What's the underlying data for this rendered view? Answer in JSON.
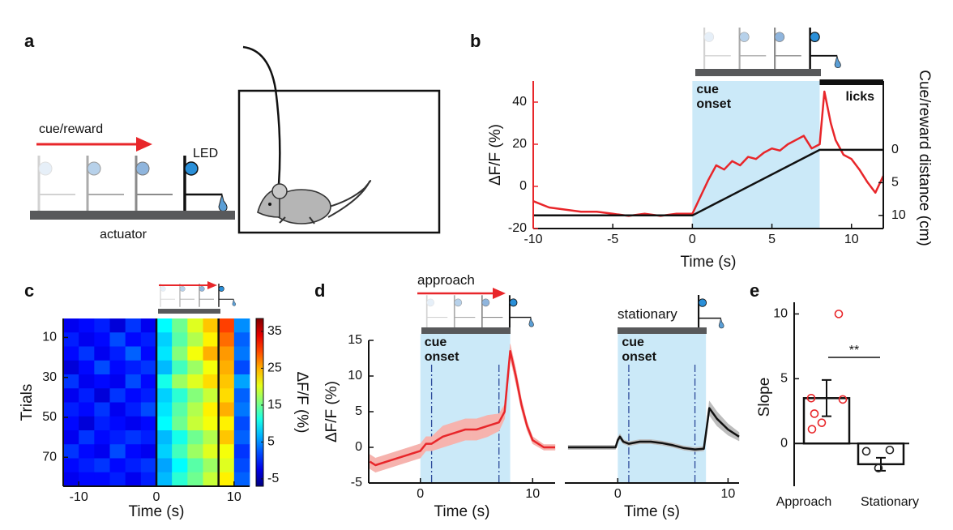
{
  "panel_labels": [
    "a",
    "b",
    "c",
    "d",
    "e"
  ],
  "diagram": {
    "cue_label": "cue/reward",
    "led_label": "LED",
    "actuator_label": "actuator"
  },
  "chart_data": [
    {
      "type": "line",
      "xlabel": "Time (s)",
      "ylabel": "ΔF/F (%)",
      "y2label": "Cue/reward distance (cm)",
      "xlim": [
        -10,
        12
      ],
      "xticks": [
        -10,
        -5,
        0,
        5,
        10
      ],
      "ylim": [
        -20,
        50
      ],
      "yticks": [
        -20,
        0,
        20,
        40
      ],
      "yaxis_color": "#e8262a",
      "y2lim": [
        12,
        -10.5
      ],
      "y2ticks": [
        0,
        5,
        10
      ],
      "span": [
        0,
        8
      ],
      "span_label": "cue onset",
      "annotation": "licks",
      "series": [
        {
          "color": "#e8262a",
          "x": [
            -10,
            -9,
            -8,
            -7,
            -6,
            -5,
            -4,
            -3,
            -2,
            -1,
            0,
            0.5,
            1,
            1.5,
            2,
            2.5,
            3,
            3.5,
            4,
            4.5,
            5,
            5.5,
            6,
            6.5,
            7,
            7.5,
            8,
            8.3,
            8.7,
            9,
            9.5,
            10,
            10.5,
            11,
            11.5,
            12
          ],
          "values": [
            -7,
            -10,
            -11,
            -12,
            -12,
            -13,
            -14,
            -13,
            -14,
            -13,
            -13,
            -5,
            3,
            10,
            8,
            12,
            10,
            14,
            13,
            16,
            18,
            17,
            20,
            22,
            24,
            18,
            20,
            45,
            30,
            22,
            15,
            13,
            8,
            2,
            -3,
            5
          ]
        },
        {
          "color": "#111111",
          "axis": "y2",
          "x": [
            -10,
            0,
            8,
            12
          ],
          "values": [
            10,
            10,
            0,
            0
          ]
        }
      ]
    },
    {
      "type": "heatmap",
      "xlabel": "Time (s)",
      "ylabel": "Trials",
      "clabel": "ΔF/F (%)",
      "colormap": "jet",
      "xlim": [
        -12,
        12
      ],
      "xticks": [
        -10,
        0,
        10
      ],
      "ylim": [
        84.5,
        0.5
      ],
      "yticks": [
        10,
        30,
        50,
        70
      ],
      "clim": [
        -7,
        38.5
      ],
      "cticks": [
        -5,
        5,
        15,
        25,
        35
      ],
      "vlines": [
        0,
        8
      ],
      "x": [
        -11,
        -9,
        -7,
        -5,
        -3,
        -1,
        1,
        3,
        5,
        7,
        9,
        11
      ],
      "y": [
        4,
        11,
        18,
        25,
        32,
        39,
        46,
        53,
        60,
        67,
        74,
        81
      ],
      "values": [
        [
          -2,
          -1,
          0,
          -3,
          1,
          -2,
          10,
          15,
          20,
          24,
          30,
          5
        ],
        [
          0,
          -2,
          -1,
          2,
          -1,
          0,
          8,
          14,
          18,
          22,
          28,
          3
        ],
        [
          -1,
          1,
          -2,
          0,
          3,
          -1,
          9,
          16,
          21,
          25,
          26,
          4
        ],
        [
          -3,
          -1,
          2,
          -1,
          0,
          1,
          7,
          13,
          17,
          21,
          25,
          2
        ],
        [
          1,
          -2,
          -1,
          -2,
          2,
          -1,
          11,
          17,
          20,
          23,
          24,
          6
        ],
        [
          -2,
          0,
          -3,
          1,
          -1,
          0,
          8,
          12,
          16,
          19,
          23,
          3
        ],
        [
          0,
          -1,
          1,
          -2,
          0,
          2,
          9,
          14,
          18,
          22,
          25,
          4
        ],
        [
          -1,
          -3,
          0,
          -1,
          -2,
          -1,
          10,
          15,
          19,
          21,
          22,
          2
        ],
        [
          -2,
          1,
          -1,
          0,
          1,
          0,
          7,
          11,
          15,
          18,
          24,
          3
        ],
        [
          1,
          -1,
          -2,
          2,
          -1,
          -2,
          8,
          13,
          17,
          20,
          21,
          1
        ],
        [
          -1,
          0,
          1,
          -1,
          0,
          1,
          6,
          10,
          14,
          17,
          20,
          2
        ],
        [
          -2,
          -1,
          -1,
          0,
          -2,
          0,
          7,
          12,
          15,
          19,
          22,
          3
        ]
      ]
    },
    {
      "type": "line",
      "xlabel": "Time (s)",
      "ylabel": "ΔF/F (%)",
      "header": "approach",
      "xlim": [
        -4.6,
        12
      ],
      "xticks": [
        0,
        10
      ],
      "ylim": [
        -5,
        15
      ],
      "yticks": [
        -5,
        0,
        5,
        10,
        15
      ],
      "span": [
        0,
        8
      ],
      "span_label": "cue onset",
      "vlines": [
        1,
        7
      ],
      "series": [
        {
          "color": "#e8262a",
          "band_color": "#f6b3ae",
          "x": [
            -4.5,
            -4,
            -3,
            -2,
            -1,
            0,
            0.5,
            1,
            2,
            3,
            4,
            5,
            6,
            7,
            7.5,
            8,
            8.5,
            9,
            9.5,
            10,
            11,
            12
          ],
          "values": [
            -2,
            -2.5,
            -2,
            -1.5,
            -1,
            -0.5,
            0.5,
            0.5,
            1.5,
            2,
            2.5,
            2.5,
            3,
            3.5,
            5,
            13.5,
            10,
            6,
            3,
            1,
            0,
            0
          ],
          "errors": [
            1,
            1,
            1,
            1,
            1,
            1,
            1,
            1,
            1.5,
            1.5,
            1.5,
            1.5,
            1.5,
            1.2,
            1,
            1,
            1,
            0.8,
            0.6,
            0.5,
            0.4,
            0.4
          ]
        }
      ]
    },
    {
      "type": "line",
      "xlabel": "Time (s)",
      "header": "stationary",
      "xlim": [
        -4.8,
        11
      ],
      "xticks": [
        0,
        10
      ],
      "ylim": [
        -5,
        15
      ],
      "span": [
        0,
        8
      ],
      "span_label": "cue onset",
      "vlines": [
        1,
        7
      ],
      "series": [
        {
          "color": "#111111",
          "band_color": "#bdbdbd",
          "x": [
            -4.5,
            -3,
            -2,
            -1,
            -0.2,
            0,
            0.2,
            0.5,
            1,
            2,
            3,
            4,
            5,
            6,
            7,
            7.8,
            8,
            8.3,
            9,
            10,
            11
          ],
          "values": [
            0,
            0,
            0,
            0,
            0,
            1,
            1.5,
            0.8,
            0.5,
            0.8,
            0.8,
            0.6,
            0.3,
            -0.1,
            -0.3,
            -0.2,
            2,
            5.5,
            4,
            2.5,
            1.5
          ],
          "errors": [
            0.3,
            0.3,
            0.3,
            0.3,
            0.3,
            0.4,
            0.4,
            0.3,
            0.3,
            0.3,
            0.3,
            0.3,
            0.3,
            0.3,
            0.3,
            0.3,
            0.5,
            1,
            1,
            0.8,
            0.6
          ]
        }
      ]
    },
    {
      "type": "bar",
      "ylabel": "Slope",
      "categories": [
        "Approach",
        "Stationary"
      ],
      "values": [
        3.5,
        -1.6
      ],
      "errors": [
        1.4,
        0.5
      ],
      "points": [
        [
          10,
          3.5,
          3.4,
          2.3,
          1.6,
          1.1
        ],
        [
          -0.6,
          -0.5,
          -1.9
        ]
      ],
      "point_colors": [
        "#e8262a",
        "#222222"
      ],
      "significance": "**",
      "ylim": [
        -3.3,
        10.9
      ],
      "yticks": [
        0,
        5,
        10
      ]
    }
  ]
}
